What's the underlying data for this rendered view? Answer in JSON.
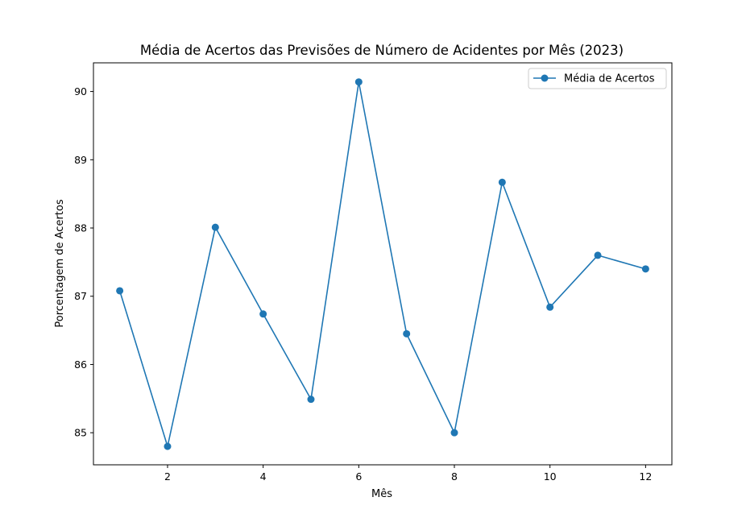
{
  "chart_data": {
    "type": "line",
    "title": "Média de Acertos das Previsões de Número de Acidentes por Mês (2023)",
    "xlabel": "Mês",
    "ylabel": "Porcentagem de Acertos",
    "x": [
      1,
      2,
      3,
      4,
      5,
      6,
      7,
      8,
      9,
      10,
      11,
      12
    ],
    "series": [
      {
        "name": "Média de Acertos",
        "values": [
          87.08,
          84.8,
          88.01,
          86.74,
          85.49,
          90.14,
          86.45,
          85.0,
          88.67,
          86.84,
          87.6,
          87.4
        ]
      }
    ],
    "xticks": [
      2,
      4,
      6,
      8,
      10,
      12
    ],
    "yticks": [
      85,
      86,
      87,
      88,
      89,
      90
    ],
    "xlim": [
      0.45,
      12.55
    ],
    "ylim": [
      84.53,
      90.42
    ],
    "grid": false,
    "legend_position": "top-right",
    "color": "#1f77b4"
  }
}
